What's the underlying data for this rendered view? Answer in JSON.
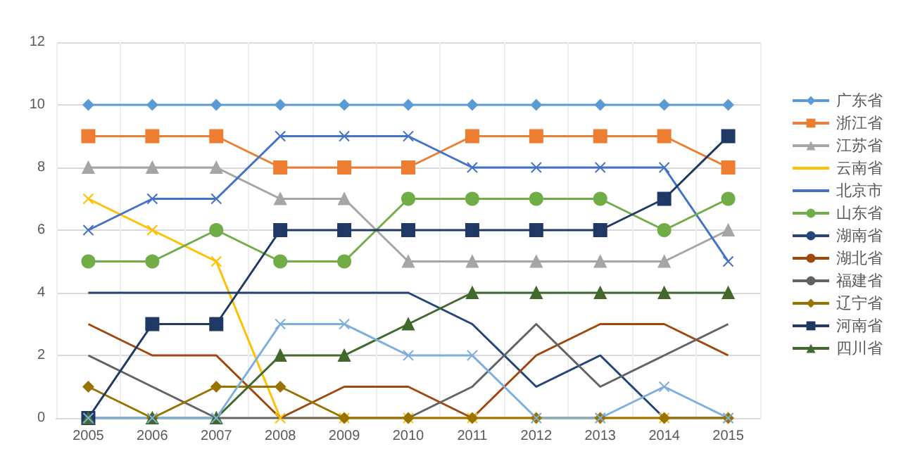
{
  "chart_data": {
    "type": "line",
    "categories": [
      "2005",
      "2006",
      "2007",
      "2008",
      "2009",
      "2010",
      "2011",
      "2012",
      "2013",
      "2014",
      "2015"
    ],
    "ylim": [
      0,
      12
    ],
    "yticks": [
      0,
      2,
      4,
      6,
      8,
      10,
      12
    ],
    "grid": true,
    "legend": "right",
    "series": [
      {
        "name": "广东省",
        "color": "#5b9bd5",
        "marker": "diamond",
        "values": [
          10,
          10,
          10,
          10,
          10,
          10,
          10,
          10,
          10,
          10,
          10
        ]
      },
      {
        "name": "浙江省",
        "color": "#ed7d31",
        "marker": "square",
        "values": [
          9,
          9,
          9,
          8,
          8,
          8,
          9,
          9,
          9,
          9,
          8
        ]
      },
      {
        "name": "江苏省",
        "color": "#a5a5a5",
        "marker": "triangle",
        "values": [
          8,
          8,
          8,
          7,
          7,
          5,
          5,
          5,
          5,
          5,
          6
        ]
      },
      {
        "name": "云南省",
        "color": "#ffc000",
        "marker": "cross",
        "values": [
          7,
          6,
          5,
          0,
          0,
          0,
          0,
          0,
          0,
          0,
          0
        ]
      },
      {
        "name": "北京市",
        "color": "#4472c4",
        "marker": "cross",
        "values": [
          6,
          7,
          7,
          9,
          9,
          9,
          8,
          8,
          8,
          8,
          5
        ]
      },
      {
        "name": "山东省",
        "color": "#70ad47",
        "marker": "circle",
        "values": [
          5,
          5,
          6,
          5,
          5,
          7,
          7,
          7,
          7,
          6,
          7
        ]
      },
      {
        "name": "湖南省",
        "color": "#264478",
        "marker": "none",
        "values": [
          4,
          4,
          4,
          4,
          4,
          4,
          3,
          1,
          2,
          0,
          0
        ]
      },
      {
        "name": "湖北省",
        "color": "#9e480e",
        "marker": "none",
        "values": [
          3,
          2,
          2,
          0,
          1,
          1,
          0,
          2,
          3,
          3,
          2
        ]
      },
      {
        "name": "福建省",
        "color": "#636363",
        "marker": "none",
        "values": [
          2,
          1,
          0,
          0,
          0,
          0,
          1,
          3,
          1,
          2,
          3
        ]
      },
      {
        "name": "辽宁省",
        "color": "#997300",
        "marker": "diamond",
        "values": [
          1,
          0,
          1,
          1,
          0,
          0,
          0,
          0,
          0,
          0,
          0
        ]
      },
      {
        "name": "河南省",
        "color": "#203864",
        "marker": "square",
        "values": [
          0,
          3,
          3,
          6,
          6,
          6,
          6,
          6,
          6,
          7,
          9
        ]
      },
      {
        "name": "四川省",
        "color": "#43682b",
        "marker": "triangle",
        "values": [
          0,
          0,
          0,
          2,
          2,
          3,
          4,
          4,
          4,
          4,
          4
        ]
      },
      {
        "color": "#7cafdd",
        "marker": "cross",
        "values": [
          0,
          0,
          0,
          3,
          3,
          2,
          2,
          0,
          0,
          1,
          0
        ]
      }
    ]
  }
}
